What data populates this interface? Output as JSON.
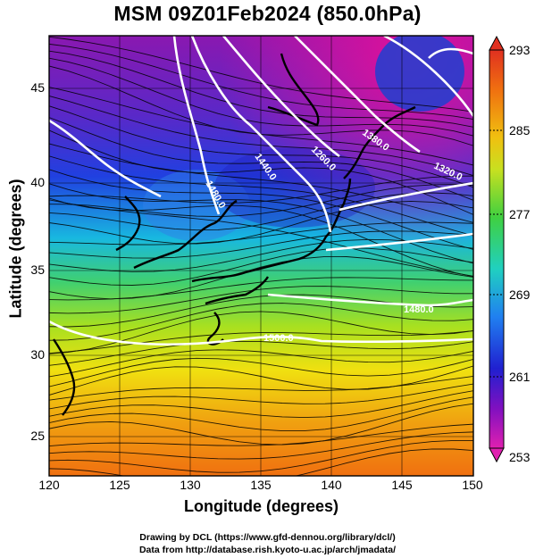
{
  "title": "MSM 09Z01Feb2024 (850.0hPa)",
  "x_axis": {
    "label": "Longitude (degrees)",
    "ticks": [
      "120",
      "125",
      "130",
      "135",
      "140",
      "145",
      "150"
    ]
  },
  "y_axis": {
    "label": "Latitude (degrees)",
    "ticks": [
      "45",
      "40",
      "35",
      "30",
      "25"
    ]
  },
  "colorbar": {
    "ticks": [
      "293",
      "285",
      "277",
      "269",
      "261",
      "253"
    ]
  },
  "contour_labels": [
    "1440.0",
    "1480.0",
    "1260.0",
    "1380.0",
    "1320.0",
    "1480.0",
    "1500.0"
  ],
  "credits": {
    "line1": "Drawing by DCL (https://www.gfd-dennou.org/library/dcl/)",
    "line2": "Data from http://database.rish.kyoto-u.ac.jp/arch/jmadata/"
  },
  "colors": {
    "cold": "#c010a0",
    "mid_blue": "#3030e0",
    "cyan": "#20d0c0",
    "green": "#40d040",
    "yellow": "#f0e010",
    "warm": "#f08010",
    "contour": "#ffffff"
  }
}
